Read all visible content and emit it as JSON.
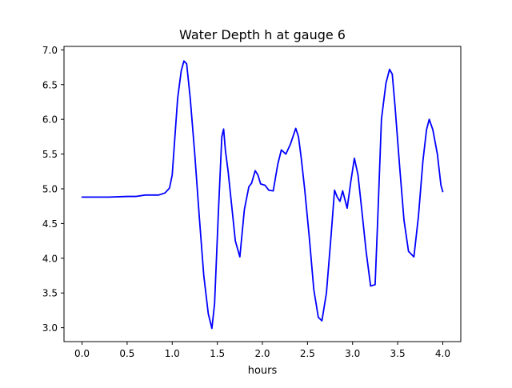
{
  "chart_data": {
    "type": "line",
    "title": "Water Depth h at gauge 6",
    "xlabel": "hours",
    "ylabel": "",
    "xlim": [
      -0.2,
      4.2
    ],
    "ylim": [
      2.8,
      7.05
    ],
    "x_ticks": [
      "0.0",
      "0.5",
      "1.0",
      "1.5",
      "2.0",
      "2.5",
      "3.0",
      "3.5",
      "4.0"
    ],
    "y_ticks": [
      "3.0",
      "3.5",
      "4.0",
      "4.5",
      "5.0",
      "5.5",
      "6.0",
      "6.5",
      "7.0"
    ],
    "grid": false,
    "legend": "none",
    "series": [
      {
        "color": "#0000ff",
        "x": [
          0.0,
          0.3,
          0.5,
          0.6,
          0.7,
          0.85,
          0.92,
          0.97,
          1.0,
          1.03,
          1.06,
          1.1,
          1.13,
          1.16,
          1.2,
          1.25,
          1.3,
          1.35,
          1.4,
          1.44,
          1.47,
          1.51,
          1.55,
          1.57,
          1.59,
          1.62,
          1.66,
          1.7,
          1.75,
          1.8,
          1.85,
          1.88,
          1.92,
          1.95,
          1.98,
          2.03,
          2.07,
          2.12,
          2.17,
          2.21,
          2.26,
          2.31,
          2.37,
          2.4,
          2.43,
          2.47,
          2.52,
          2.57,
          2.62,
          2.66,
          2.71,
          2.76,
          2.8,
          2.83,
          2.86,
          2.89,
          2.94,
          2.98,
          3.02,
          3.06,
          3.1,
          3.15,
          3.2,
          3.25,
          3.28,
          3.32,
          3.37,
          3.41,
          3.44,
          3.47,
          3.52,
          3.57,
          3.62,
          3.68,
          3.73,
          3.78,
          3.82,
          3.85,
          3.89,
          3.94,
          3.98,
          4.0
        ],
        "y": [
          4.88,
          4.88,
          4.89,
          4.89,
          4.91,
          4.91,
          4.94,
          5.01,
          5.2,
          5.75,
          6.3,
          6.7,
          6.84,
          6.8,
          6.3,
          5.5,
          4.6,
          3.75,
          3.2,
          2.99,
          3.35,
          4.6,
          5.75,
          5.86,
          5.55,
          5.25,
          4.75,
          4.25,
          4.02,
          4.7,
          5.03,
          5.08,
          5.26,
          5.2,
          5.07,
          5.05,
          4.98,
          4.97,
          5.35,
          5.56,
          5.5,
          5.64,
          5.87,
          5.75,
          5.45,
          4.98,
          4.3,
          3.55,
          3.15,
          3.1,
          3.5,
          4.3,
          4.98,
          4.88,
          4.82,
          4.97,
          4.72,
          5.1,
          5.44,
          5.2,
          4.72,
          4.1,
          3.6,
          3.62,
          4.6,
          6.0,
          6.52,
          6.72,
          6.65,
          6.2,
          5.35,
          4.55,
          4.1,
          4.02,
          4.6,
          5.4,
          5.85,
          6.0,
          5.85,
          5.5,
          5.05,
          4.96
        ]
      }
    ]
  }
}
